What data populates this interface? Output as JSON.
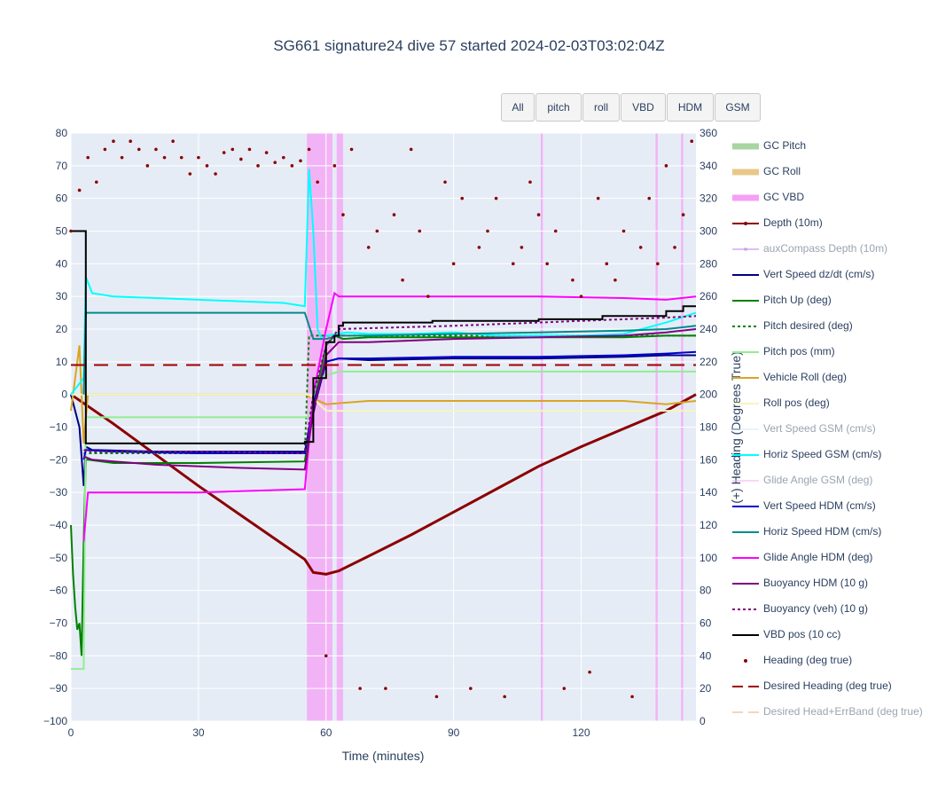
{
  "title": "SG661 signature24 dive 57 started 2024-02-03T03:02:04Z",
  "buttons": [
    "All",
    "pitch",
    "roll",
    "VBD",
    "HDM",
    "GSM"
  ],
  "legend": [
    {
      "label": "GC Pitch",
      "color": "#a8d5a2",
      "style": "band",
      "visible": true
    },
    {
      "label": "GC Roll",
      "color": "#e8c88a",
      "style": "band",
      "visible": true
    },
    {
      "label": "GC VBD",
      "color": "#f5a0f5",
      "style": "band",
      "visible": true
    },
    {
      "label": "Depth (10m)",
      "color": "#8b0000",
      "style": "line-marker",
      "visible": true
    },
    {
      "label": "auxCompass Depth (10m)",
      "color": "#c080e0",
      "style": "line-marker",
      "visible": false
    },
    {
      "label": "Vert Speed dz/dt (cm/s)",
      "color": "#000080",
      "style": "line",
      "visible": true
    },
    {
      "label": "Pitch Up (deg)",
      "color": "#008000",
      "style": "line",
      "visible": true
    },
    {
      "label": "Pitch desired (deg)",
      "color": "#008000",
      "style": "dot",
      "visible": true
    },
    {
      "label": "Pitch pos (mm)",
      "color": "#90ee90",
      "style": "line",
      "visible": true
    },
    {
      "label": "Vehicle Roll (deg)",
      "color": "#daa520",
      "style": "line",
      "visible": true
    },
    {
      "label": "Roll pos (deg)",
      "color": "#f5f5c0",
      "style": "line",
      "visible": true
    },
    {
      "label": "Vert Speed GSM (cm/s)",
      "color": "#d0e8ff",
      "style": "line",
      "visible": false
    },
    {
      "label": "Horiz Speed GSM (cm/s)",
      "color": "#00ffff",
      "style": "line",
      "visible": true
    },
    {
      "label": "Glide Angle GSM (deg)",
      "color": "#f0b0f0",
      "style": "line",
      "visible": false
    },
    {
      "label": "Vert Speed HDM (cm/s)",
      "color": "#0000cd",
      "style": "line",
      "visible": true
    },
    {
      "label": "Horiz Speed HDM (cm/s)",
      "color": "#008b8b",
      "style": "line",
      "visible": true
    },
    {
      "label": "Glide Angle HDM (deg)",
      "color": "#ff00ff",
      "style": "line",
      "visible": true
    },
    {
      "label": "Buoyancy HDM (10 g)",
      "color": "#800080",
      "style": "line",
      "visible": true
    },
    {
      "label": "Buoyancy (veh) (10 g)",
      "color": "#800080",
      "style": "dot",
      "visible": true
    },
    {
      "label": "VBD pos (10 cc)",
      "color": "#000000",
      "style": "line",
      "visible": true
    },
    {
      "label": "Heading (deg true)",
      "color": "#8b0000",
      "style": "marker",
      "visible": true
    },
    {
      "label": "Desired Heading (deg true)",
      "color": "#a00000",
      "style": "dash",
      "visible": true
    },
    {
      "label": "Desired Head+ErrBand (deg true)",
      "color": "#e8b080",
      "style": "dash",
      "visible": false
    }
  ],
  "chart_data": {
    "type": "line",
    "title": "SG661 signature24 dive 57 started 2024-02-03T03:02:04Z",
    "xlabel": "Time (minutes)",
    "ylabel": "",
    "y2label": "(+) Heading (Degrees True)",
    "xlim": [
      0,
      147
    ],
    "ylim": [
      -100,
      80
    ],
    "y2lim": [
      0,
      360
    ],
    "xticks": [
      0,
      30,
      60,
      90,
      120
    ],
    "yticks": [
      -100,
      -90,
      -80,
      -70,
      -60,
      -50,
      -40,
      -30,
      -20,
      -10,
      0,
      10,
      20,
      30,
      40,
      50,
      60,
      70,
      80
    ],
    "y2ticks": [
      0,
      20,
      40,
      60,
      80,
      100,
      120,
      140,
      160,
      180,
      200,
      220,
      240,
      260,
      280,
      300,
      320,
      340,
      360
    ],
    "grid": true,
    "legend_position": "right",
    "gc_vbd_bands": [
      [
        55.5,
        61.5
      ],
      [
        62.5,
        64
      ],
      [
        110.5,
        111
      ],
      [
        137.5,
        138
      ],
      [
        143.5,
        144
      ]
    ],
    "series": [
      {
        "name": "Depth (10m)",
        "color": "#8b0000",
        "axis": "y",
        "x": [
          0,
          10,
          20,
          30,
          40,
          50,
          55,
          57,
          60,
          63,
          70,
          80,
          90,
          100,
          110,
          120,
          130,
          140,
          147
        ],
        "y": [
          0,
          -9,
          -18.5,
          -28,
          -37,
          -46,
          -50.5,
          -54.5,
          -55,
          -54,
          -49.5,
          -43,
          -36,
          -29,
          -22,
          -16,
          -10.5,
          -5,
          0
        ]
      },
      {
        "name": "Vert Speed dz/dt (cm/s)",
        "color": "#000080",
        "axis": "y",
        "x": [
          0,
          2,
          3,
          3.5,
          5,
          20,
          40,
          55,
          58,
          60,
          63,
          70,
          90,
          110,
          130,
          140,
          147
        ],
        "y": [
          0,
          -10,
          -28,
          -16,
          -17,
          -17.5,
          -17.5,
          -17.5,
          0,
          10,
          11,
          10.5,
          11,
          11,
          11.5,
          12,
          12
        ]
      },
      {
        "name": "Pitch Up (deg)",
        "color": "#008000",
        "axis": "y",
        "x": [
          0,
          0.5,
          1,
          1.5,
          2,
          2.5,
          3,
          3.5,
          4,
          10,
          30,
          55,
          57,
          60,
          62,
          64,
          70,
          90,
          110,
          130,
          140,
          147
        ],
        "y": [
          -40,
          -55,
          -65,
          -72,
          -70,
          -80,
          -45,
          -20,
          -20,
          -21,
          -21,
          -20.5,
          -3,
          15,
          18,
          17,
          17.5,
          17.5,
          17.5,
          17.5,
          18,
          18
        ]
      },
      {
        "name": "Pitch desired (deg)",
        "color": "#008000",
        "axis": "y",
        "dash": "dot",
        "x": [
          3,
          55,
          56,
          64,
          147
        ],
        "y": [
          -18,
          -18,
          18,
          18,
          18
        ]
      },
      {
        "name": "Pitch pos (mm)",
        "color": "#90ee90",
        "axis": "y",
        "x": [
          0,
          3,
          3.5,
          56,
          58,
          63,
          147
        ],
        "y": [
          -84,
          -84,
          -7,
          -7,
          5,
          7,
          7
        ]
      },
      {
        "name": "Vehicle Roll (deg)",
        "color": "#daa520",
        "axis": "y",
        "x": [
          0,
          1,
          2,
          3,
          4,
          10,
          30,
          55,
          60,
          70,
          90,
          110,
          130,
          140,
          147
        ],
        "y": [
          -5,
          5,
          15,
          -15,
          0,
          0,
          0,
          0,
          -3,
          -2,
          -2,
          -2,
          -2,
          -3,
          -2
        ]
      },
      {
        "name": "Roll pos (deg)",
        "color": "#f5f5c0",
        "axis": "y",
        "x": [
          0,
          3,
          56,
          60,
          147
        ],
        "y": [
          0,
          0,
          0,
          -5,
          -5
        ]
      },
      {
        "name": "Horiz Speed GSM (cm/s)",
        "color": "#00ffff",
        "axis": "y",
        "x": [
          0,
          3,
          3.5,
          5,
          10,
          20,
          30,
          40,
          50,
          55,
          56,
          57,
          58,
          59,
          60,
          65,
          70,
          80,
          90,
          100,
          110,
          120,
          130,
          140,
          147
        ],
        "y": [
          0,
          5,
          36,
          31,
          30,
          29.5,
          29,
          28.5,
          28,
          27,
          69,
          50,
          20,
          17,
          18,
          19,
          18.5,
          18.5,
          19,
          18,
          18,
          18,
          18.5,
          22,
          25
        ]
      },
      {
        "name": "Vert Speed HDM (cm/s)",
        "color": "#0000cd",
        "axis": "y",
        "x": [
          3,
          3.5,
          10,
          30,
          55,
          57,
          60,
          63,
          70,
          90,
          110,
          130,
          140,
          147
        ],
        "y": [
          -20,
          -17,
          -17.5,
          -18,
          -18,
          -3,
          10,
          11,
          11,
          11.5,
          11.5,
          12,
          12.5,
          13
        ]
      },
      {
        "name": "Horiz Speed HDM (cm/s)",
        "color": "#008b8b",
        "axis": "y",
        "x": [
          3,
          3.5,
          10,
          30,
          55,
          57,
          60,
          63,
          70,
          90,
          110,
          130,
          140,
          147
        ],
        "y": [
          0,
          25,
          25,
          25,
          25,
          17,
          17,
          18,
          18,
          18.5,
          19,
          19.5,
          20,
          21
        ]
      },
      {
        "name": "Glide Angle HDM (deg)",
        "color": "#ff00ff",
        "axis": "y",
        "x": [
          3,
          4,
          10,
          30,
          55,
          57,
          60,
          62,
          63,
          70,
          90,
          110,
          130,
          140,
          147
        ],
        "y": [
          -45,
          -30,
          -30,
          -30,
          -29,
          0,
          20,
          31,
          30,
          30,
          30,
          30,
          29.5,
          29,
          30
        ]
      },
      {
        "name": "Buoyancy HDM (10 g)",
        "color": "#800080",
        "axis": "y",
        "x": [
          3,
          5,
          20,
          40,
          55,
          57,
          60,
          63,
          70,
          90,
          110,
          130,
          140,
          147
        ],
        "y": [
          -19,
          -20,
          -21.5,
          -22.5,
          -23,
          -5,
          12,
          16,
          16,
          17,
          17.5,
          18,
          19,
          20
        ]
      },
      {
        "name": "Buoyancy (veh) (10 g)",
        "color": "#800080",
        "axis": "y",
        "dash": "dot",
        "x": [
          3,
          5,
          30,
          55,
          57,
          60,
          63,
          90,
          110,
          130,
          140,
          147
        ],
        "y": [
          -17,
          -17.5,
          -17.5,
          -18,
          0,
          15,
          20,
          21,
          22,
          23,
          23.5,
          24
        ]
      },
      {
        "name": "VBD pos (10 cc)",
        "color": "#000000",
        "axis": "y",
        "shape": "hv",
        "x": [
          0,
          3,
          3.5,
          10,
          55,
          57,
          60,
          62,
          63,
          64,
          85,
          110,
          125,
          140,
          144,
          147
        ],
        "y": [
          50,
          50,
          -15,
          -15,
          -14.5,
          5,
          16,
          18,
          21,
          22,
          22.5,
          23,
          24,
          25.5,
          27,
          27
        ]
      },
      {
        "name": "Desired Heading (deg true)",
        "color": "#a00000",
        "axis": "y2",
        "dash": "dash",
        "x": [
          0,
          147
        ],
        "y": [
          218,
          218
        ]
      }
    ],
    "heading": {
      "name": "Heading (deg true)",
      "color": "#8b0000",
      "axis": "y2",
      "x": [
        0,
        2,
        4,
        6,
        8,
        10,
        12,
        14,
        16,
        18,
        20,
        22,
        24,
        26,
        28,
        30,
        32,
        34,
        36,
        38,
        40,
        42,
        44,
        46,
        48,
        50,
        52,
        54,
        56,
        58,
        60,
        62,
        64,
        66,
        68,
        70,
        72,
        74,
        76,
        78,
        80,
        82,
        84,
        86,
        88,
        90,
        92,
        94,
        96,
        98,
        100,
        102,
        104,
        106,
        108,
        110,
        112,
        114,
        116,
        118,
        120,
        122,
        124,
        126,
        128,
        130,
        132,
        134,
        136,
        138,
        140,
        142,
        144,
        146
      ],
      "y": [
        300,
        325,
        345,
        330,
        350,
        355,
        345,
        355,
        350,
        340,
        350,
        345,
        355,
        345,
        335,
        345,
        340,
        335,
        348,
        350,
        344,
        350,
        340,
        348,
        342,
        345,
        340,
        343,
        350,
        330,
        40,
        340,
        310,
        350,
        20,
        290,
        300,
        20,
        310,
        270,
        350,
        300,
        260,
        15,
        330,
        280,
        320,
        20,
        290,
        300,
        320,
        15,
        280,
        290,
        330,
        310,
        280,
        300,
        20,
        270,
        260,
        30,
        320,
        280,
        270,
        300,
        15,
        290,
        320,
        280,
        340,
        290,
        310,
        355
      ]
    }
  }
}
